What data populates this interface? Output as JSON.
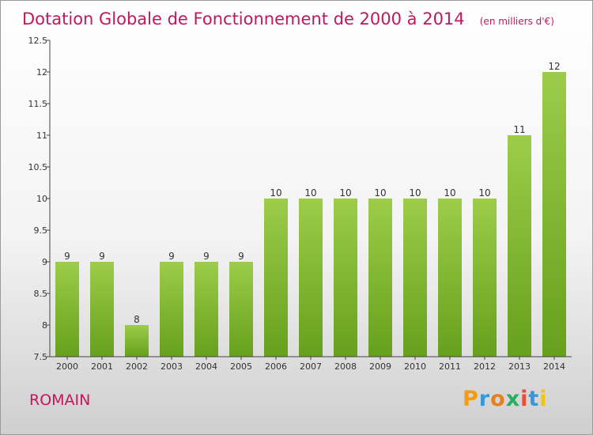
{
  "chart_data": {
    "type": "bar",
    "title": "Dotation Globale de Fonctionnement de 2000 à 2014",
    "subtitle": "(en milliers d'€)",
    "categories": [
      "2000",
      "2001",
      "2002",
      "2003",
      "2004",
      "2005",
      "2006",
      "2007",
      "2008",
      "2009",
      "2010",
      "2011",
      "2012",
      "2013",
      "2014"
    ],
    "values": [
      9,
      9,
      8,
      9,
      9,
      9,
      10,
      10,
      10,
      10,
      10,
      10,
      10,
      11,
      12
    ],
    "data_labels": [
      "9",
      "9",
      "8",
      "9",
      "9",
      "9",
      "10",
      "10",
      "10",
      "10",
      "10",
      "10",
      "10",
      "11",
      "12"
    ],
    "ylim": [
      7.5,
      12.5
    ],
    "yticks": [
      7.5,
      8,
      8.5,
      9,
      9.5,
      10,
      10.5,
      11,
      11.5,
      12,
      12.5
    ],
    "ytick_labels": [
      "7.5",
      "8",
      "8.5",
      "9",
      "9.5",
      "10",
      "10.5",
      "11",
      "11.5",
      "12",
      "12.5"
    ],
    "grid": false,
    "bar_color_top": "#9ccc4a",
    "bar_color_bottom": "#66a01c",
    "title_color": "#c2185b"
  },
  "commune_name": "ROMAIN",
  "logo": {
    "text": "Proxiti",
    "letters": [
      "P",
      "r",
      "o",
      "x",
      "i",
      "t",
      "i"
    ],
    "colors": [
      "#f39c12",
      "#3498db",
      "#e67e22",
      "#27ae60",
      "#e74c3c",
      "#3498db",
      "#f1c40f"
    ]
  }
}
